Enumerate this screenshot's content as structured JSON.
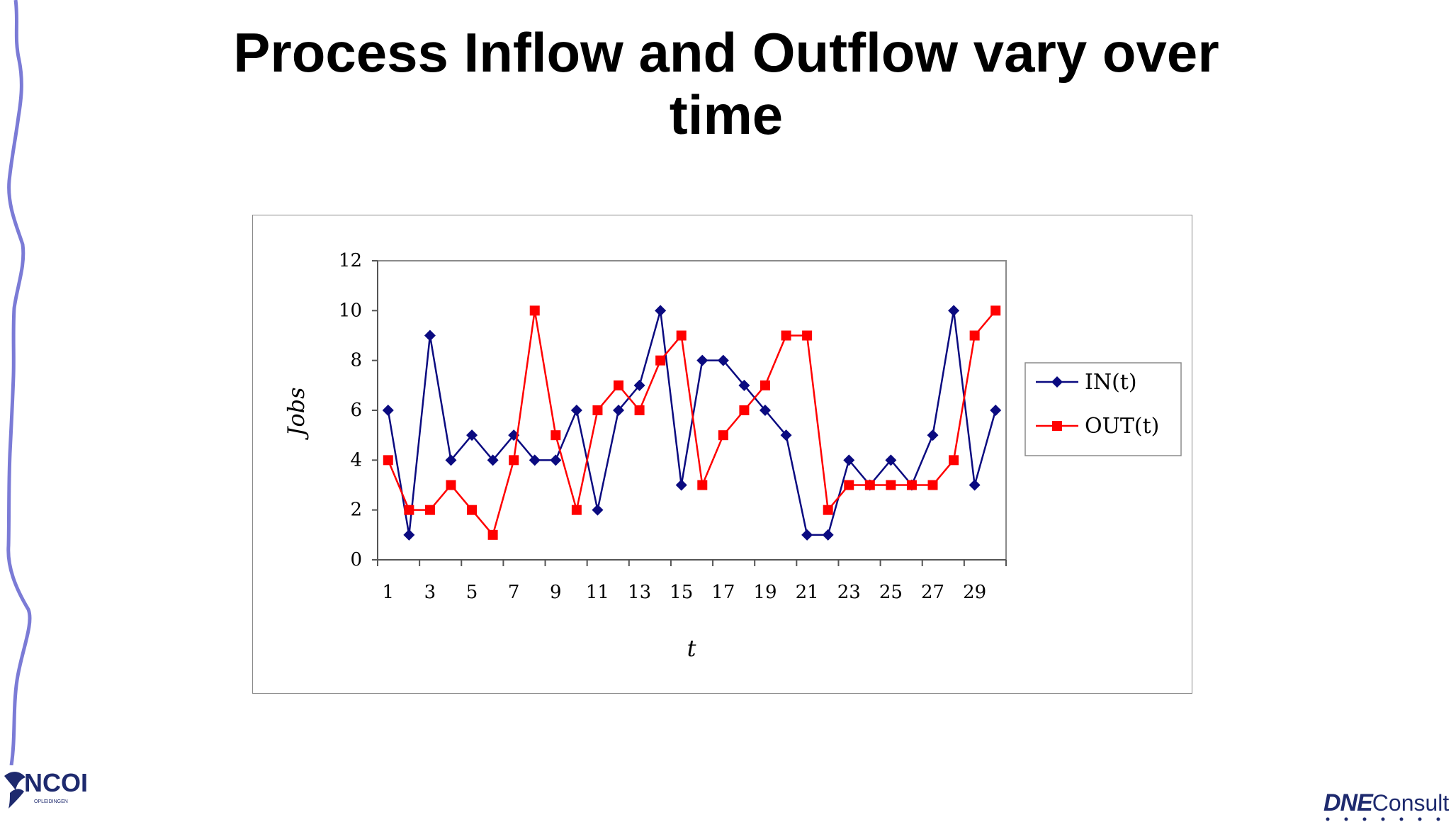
{
  "slide": {
    "title_line1": "Process Inflow and Outflow vary over",
    "title_line2": "time"
  },
  "logos": {
    "left_text": "NCOI",
    "left_subtext": "OPLEIDINGEN",
    "right_brand": "DNE",
    "right_suffix": "Consult"
  },
  "colors": {
    "ribbon": "#7b7bd6",
    "in_series": "#0a0a80",
    "out_series": "#ff0000",
    "logo_navy": "#1e2a6e"
  },
  "chart_data": {
    "type": "line",
    "xlabel": "t",
    "ylabel": "Jobs",
    "ylim": [
      0,
      12
    ],
    "yticks": [
      0,
      2,
      4,
      6,
      8,
      10,
      12
    ],
    "x": [
      1,
      2,
      3,
      4,
      5,
      6,
      7,
      8,
      9,
      10,
      11,
      12,
      13,
      14,
      15,
      16,
      17,
      18,
      19,
      20,
      21,
      22,
      23,
      24,
      25,
      26,
      27,
      28,
      29,
      30
    ],
    "xtick_labels": [
      "1",
      "3",
      "5",
      "7",
      "9",
      "11",
      "13",
      "15",
      "17",
      "19",
      "21",
      "23",
      "25",
      "27",
      "29"
    ],
    "legend_position": "right",
    "grid": false,
    "series": [
      {
        "name": "IN(t)",
        "marker": "diamond",
        "color": "#0a0a80",
        "values": [
          6,
          1,
          9,
          4,
          5,
          4,
          5,
          4,
          4,
          6,
          2,
          6,
          7,
          10,
          3,
          8,
          8,
          7,
          6,
          5,
          1,
          1,
          4,
          3,
          4,
          3,
          5,
          10,
          3,
          6
        ]
      },
      {
        "name": "OUT(t)",
        "marker": "square",
        "color": "#ff0000",
        "values": [
          4,
          2,
          2,
          3,
          2,
          1,
          4,
          10,
          5,
          2,
          6,
          7,
          6,
          8,
          9,
          3,
          5,
          6,
          7,
          9,
          9,
          2,
          3,
          3,
          3,
          3,
          3,
          4,
          9,
          10
        ]
      }
    ]
  }
}
